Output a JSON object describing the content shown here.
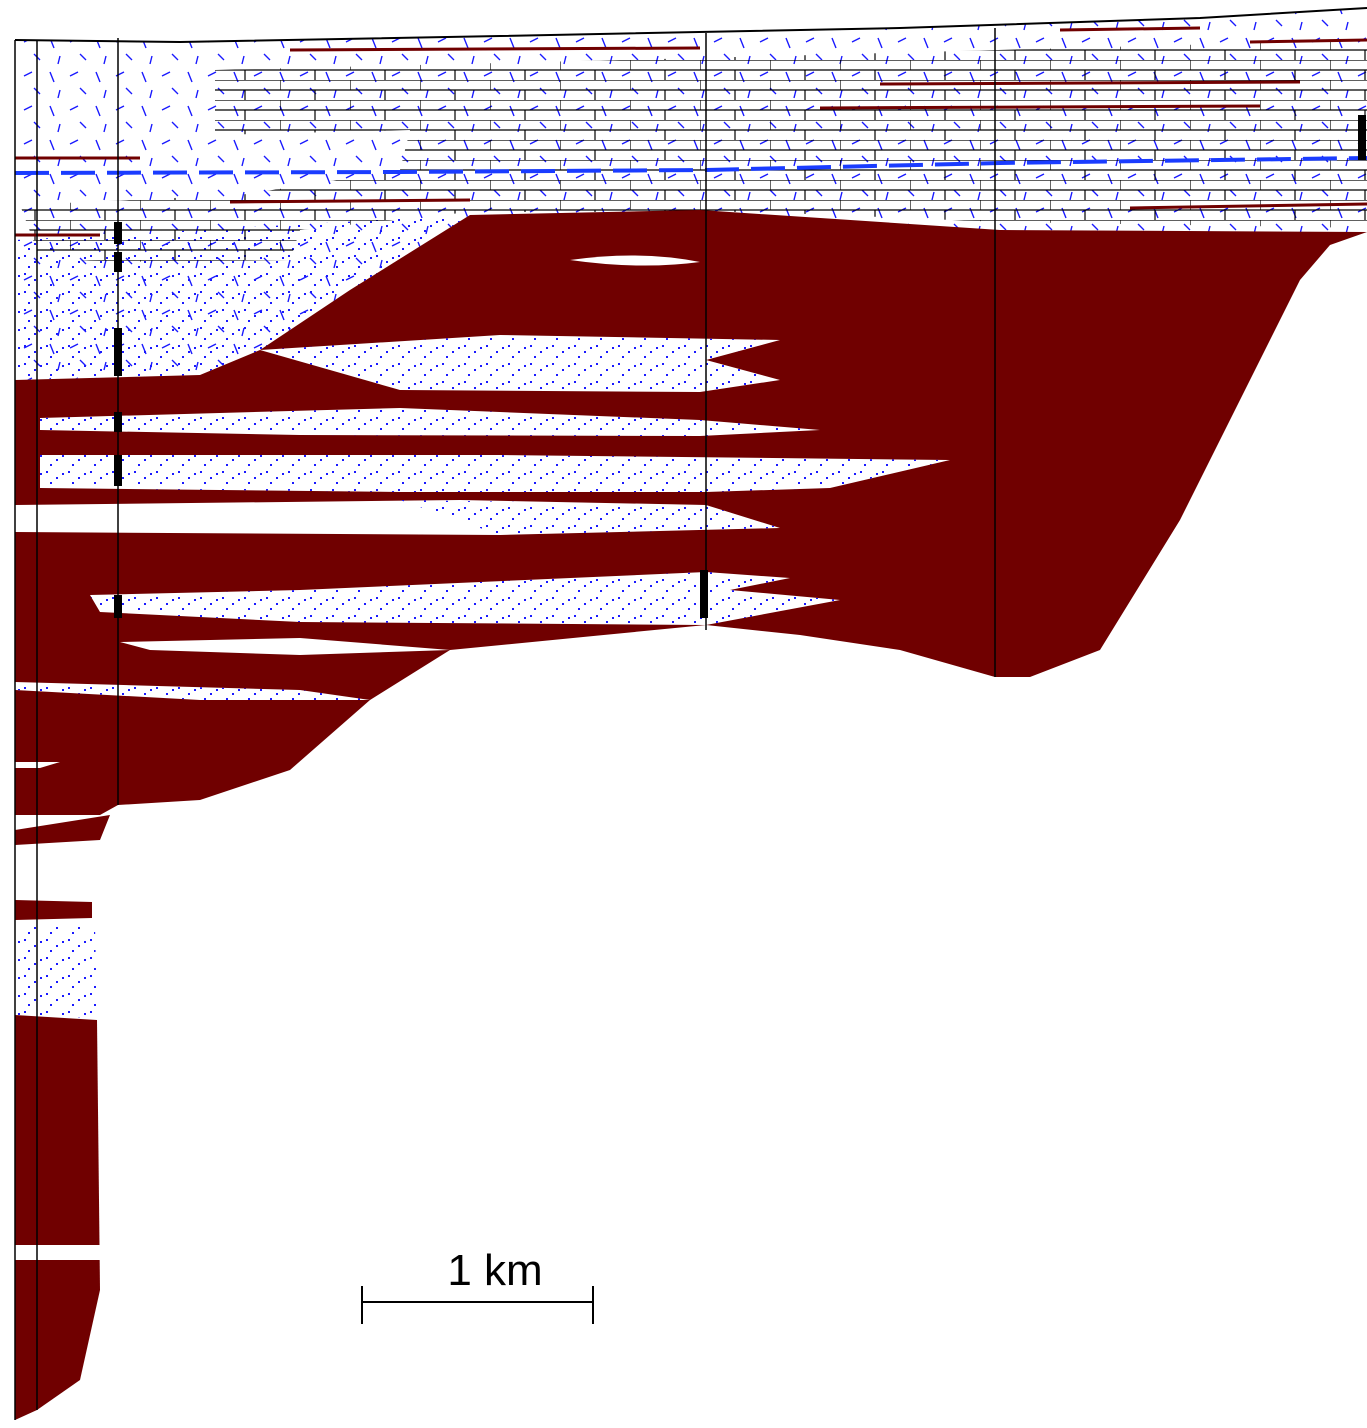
{
  "scale_bar": {
    "label": "1 km"
  }
}
